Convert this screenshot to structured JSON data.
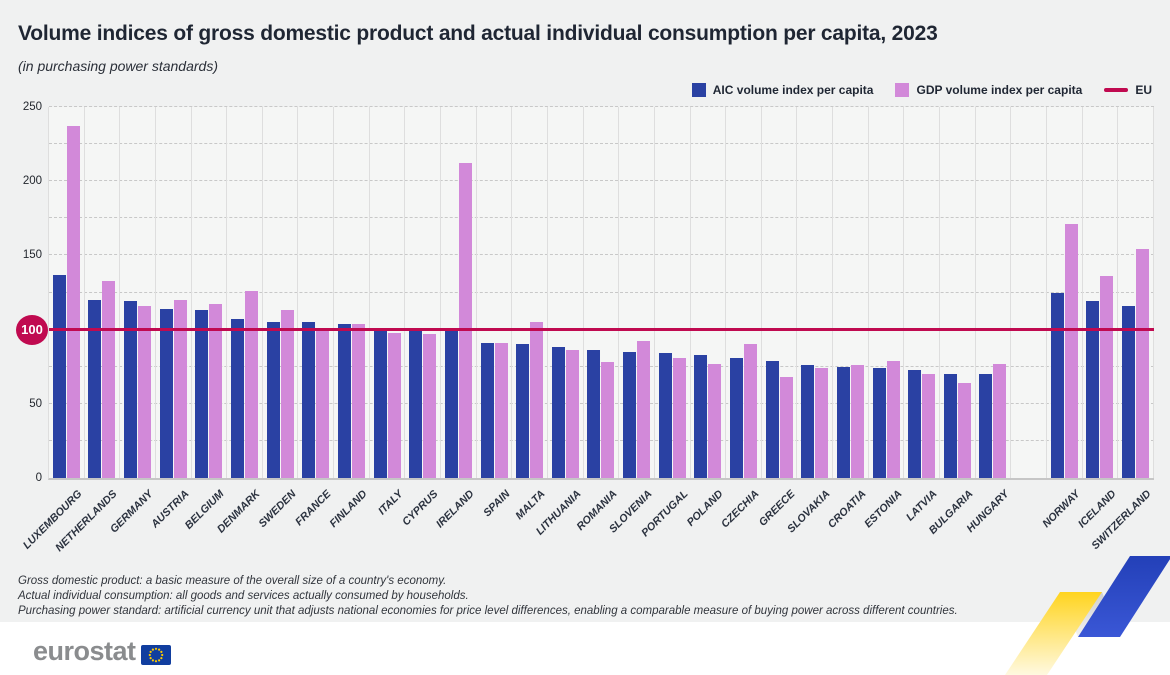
{
  "header": {
    "title": "Volume indices of gross domestic product and actual individual consumption per capita, 2023",
    "subtitle": "(in purchasing power standards)"
  },
  "legend": [
    {
      "label": "AIC volume index per capita",
      "color": "#2a41a3",
      "type": "square"
    },
    {
      "label": "GDP volume index per capita",
      "color": "#d289d9",
      "type": "square"
    },
    {
      "label": "EU",
      "color": "#c00a50",
      "type": "line"
    }
  ],
  "chart_data": {
    "type": "bar",
    "title": "Volume indices of gross domestic product and actual individual consumption per capita, 2023",
    "subtitle": "(in purchasing power standards)",
    "categories": [
      "LUXEMBOURG",
      "NETHERLANDS",
      "GERMANY",
      "AUSTRIA",
      "BELGIUM",
      "DENMARK",
      "SWEDEN",
      "FRANCE",
      "FINLAND",
      "ITALY",
      "CYPRUS",
      "IRELAND",
      "SPAIN",
      "MALTA",
      "LITHUANIA",
      "ROMANIA",
      "SLOVENIA",
      "PORTUGAL",
      "POLAND",
      "CZECHIA",
      "GREECE",
      "SLOVAKIA",
      "CROATIA",
      "ESTONIA",
      "LATVIA",
      "BULGARIA",
      "HUNGARY",
      "",
      "NORWAY",
      "ICELAND",
      "SWITZERLAND"
    ],
    "series": [
      {
        "name": "AIC volume index per capita",
        "color": "#2a41a3",
        "values": [
          137,
          120,
          119,
          114,
          113,
          107,
          105,
          105,
          104,
          99,
          99,
          99,
          91,
          90,
          88,
          86,
          85,
          84,
          83,
          81,
          79,
          76,
          75,
          74,
          73,
          70,
          70,
          null,
          125,
          119,
          116
        ]
      },
      {
        "name": "GDP volume index per capita",
        "color": "#d289d9",
        "values": [
          237,
          133,
          116,
          120,
          117,
          126,
          113,
          100,
          104,
          98,
          97,
          212,
          91,
          105,
          86,
          78,
          92,
          81,
          77,
          90,
          68,
          74,
          76,
          79,
          70,
          64,
          77,
          null,
          171,
          136,
          154
        ]
      }
    ],
    "reference_line": {
      "label": "EU",
      "value": 100,
      "color": "#c00a50"
    },
    "ylim": [
      0,
      250
    ],
    "yticks": [
      0,
      50,
      100,
      150,
      200,
      250
    ],
    "grid_step": 25,
    "grid": "horizontal-dashed, vertical-solid",
    "legend_position": "top-right"
  },
  "footnotes": {
    "line1": "Gross domestic product: a basic measure of the overall size of a country's economy.",
    "line2": "Actual individual consumption: all goods and services actually consumed by households.",
    "line3": "Purchasing power standard: artificial currency unit that adjusts national economies for price level differences, enabling a comparable measure of buying power across different countries."
  },
  "footer": {
    "logo_text": "eurostat"
  }
}
